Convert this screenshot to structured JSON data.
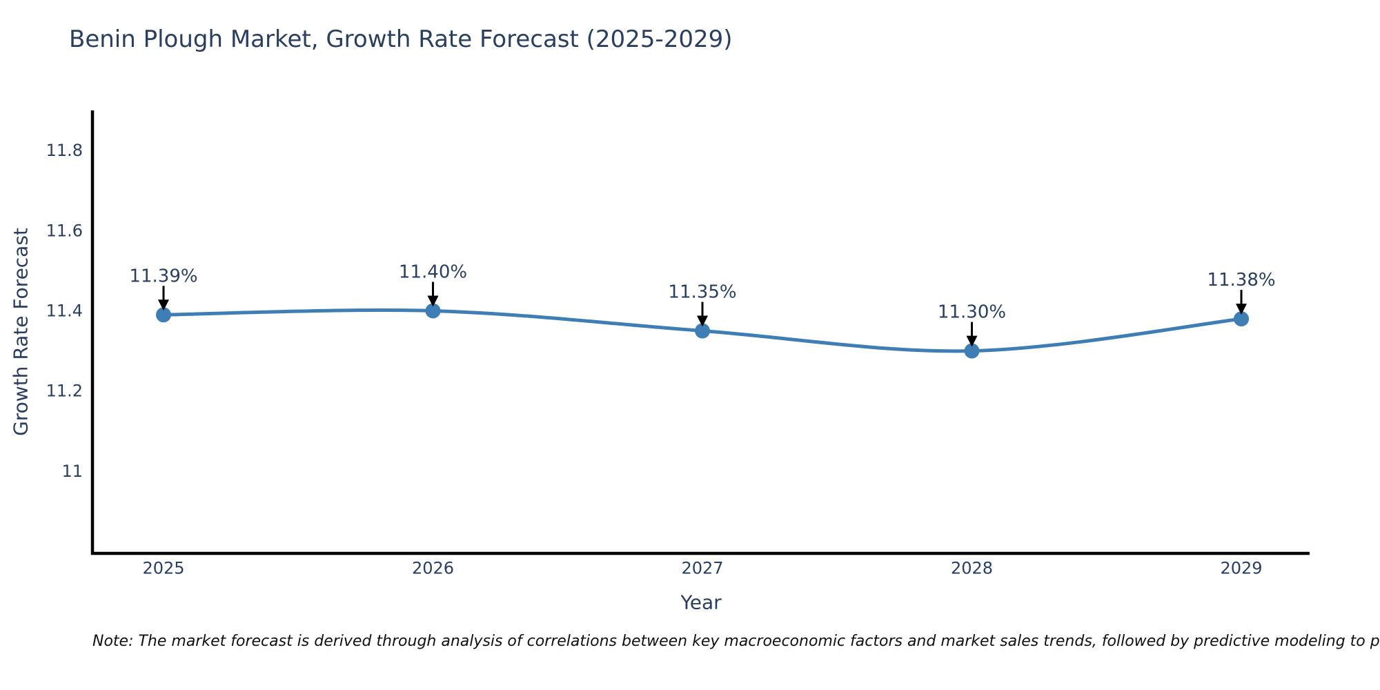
{
  "title": "Benin Plough Market, Growth Rate Forecast (2025-2029)",
  "note": {
    "text": "Note: The market forecast is derived through analysis of correlations between key macroeconomic factors and market sales trends, followed by predictive modeling to project future sal"
  },
  "colors": {
    "background": "#ffffff",
    "text": "#2a3f5f",
    "axis": "#000000",
    "line": "#3f7eb5",
    "marker": "#3f7eb5",
    "arrow": "#000000",
    "note": "#111111"
  },
  "chart_data": {
    "type": "line",
    "title": "Benin Plough Market, Growth Rate Forecast (2025-2029)",
    "xlabel": "Year",
    "ylabel": "Growth Rate Forecast",
    "categories": [
      "2025",
      "2026",
      "2027",
      "2028",
      "2029"
    ],
    "series": [
      {
        "name": "Growth Rate Forecast",
        "values": [
          11.39,
          11.4,
          11.35,
          11.3,
          11.38
        ]
      }
    ],
    "annotations": [
      "11.39%",
      "11.40%",
      "11.35%",
      "11.30%",
      "11.38%"
    ],
    "yticks": [
      11,
      11.2,
      11.4,
      11.6,
      11.8
    ],
    "ytick_labels": [
      "11",
      "11.2",
      "11.4",
      "11.6",
      "11.8"
    ],
    "ylim": [
      10.795,
      11.9
    ],
    "grid": false,
    "legend": false,
    "line_shape": "spline",
    "markers": true
  }
}
